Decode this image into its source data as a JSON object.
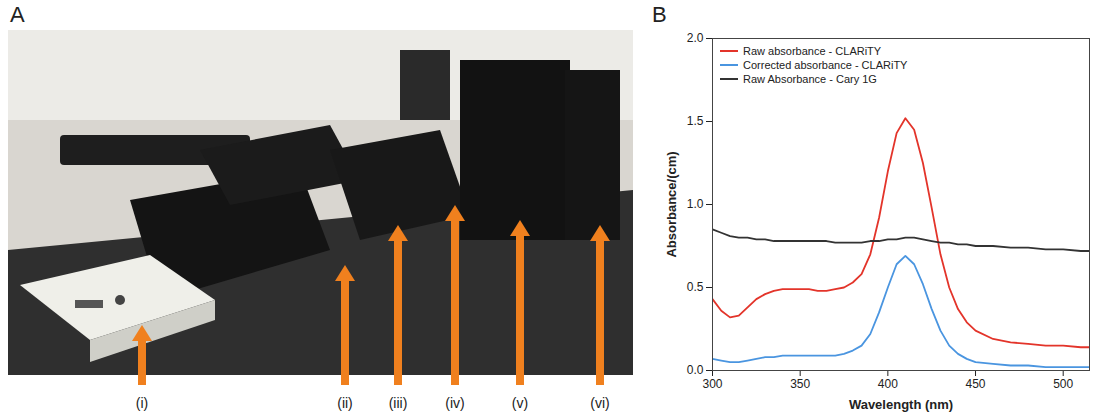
{
  "panel_a": {
    "letter": "A",
    "labels": [
      "(i)",
      "(ii)",
      "(iii)",
      "(iv)",
      "(v)",
      "(vi)"
    ]
  },
  "chart_data": {
    "panel_letter": "B",
    "type": "line",
    "xlabel": "Wavelength (nm)",
    "ylabel": "Absorbance/(cm)",
    "x": [
      300,
      305,
      310,
      315,
      320,
      325,
      330,
      335,
      340,
      345,
      350,
      355,
      360,
      365,
      370,
      375,
      380,
      385,
      390,
      395,
      400,
      405,
      410,
      415,
      420,
      425,
      430,
      435,
      440,
      445,
      450,
      460,
      470,
      480,
      490,
      500,
      510,
      515
    ],
    "series": [
      {
        "name": "Raw absorbance - CLARiTY",
        "color": "#e3342a",
        "values": [
          0.43,
          0.36,
          0.32,
          0.33,
          0.38,
          0.43,
          0.46,
          0.48,
          0.49,
          0.49,
          0.49,
          0.49,
          0.48,
          0.48,
          0.49,
          0.5,
          0.53,
          0.58,
          0.7,
          0.92,
          1.2,
          1.43,
          1.52,
          1.45,
          1.25,
          0.98,
          0.7,
          0.5,
          0.37,
          0.29,
          0.24,
          0.19,
          0.17,
          0.16,
          0.15,
          0.15,
          0.14,
          0.14
        ]
      },
      {
        "name": "Corrected absorbance - CLARiTY",
        "color": "#4a95e0",
        "values": [
          0.07,
          0.06,
          0.05,
          0.05,
          0.06,
          0.07,
          0.08,
          0.08,
          0.09,
          0.09,
          0.09,
          0.09,
          0.09,
          0.09,
          0.09,
          0.1,
          0.12,
          0.15,
          0.22,
          0.35,
          0.5,
          0.64,
          0.69,
          0.64,
          0.52,
          0.37,
          0.24,
          0.15,
          0.1,
          0.07,
          0.05,
          0.04,
          0.03,
          0.03,
          0.02,
          0.02,
          0.02,
          0.02
        ]
      },
      {
        "name": "Raw Absorbance - Cary 1G",
        "color": "#333333",
        "values": [
          0.85,
          0.83,
          0.81,
          0.8,
          0.8,
          0.79,
          0.79,
          0.78,
          0.78,
          0.78,
          0.78,
          0.78,
          0.78,
          0.78,
          0.77,
          0.77,
          0.77,
          0.77,
          0.78,
          0.78,
          0.79,
          0.79,
          0.8,
          0.8,
          0.79,
          0.78,
          0.77,
          0.77,
          0.76,
          0.76,
          0.75,
          0.75,
          0.74,
          0.74,
          0.73,
          0.73,
          0.72,
          0.72
        ]
      }
    ],
    "xlim": [
      300,
      515
    ],
    "xticks": [
      300,
      350,
      400,
      450,
      500
    ],
    "ylim": [
      0,
      2
    ],
    "yticks": [
      {
        "value": 0,
        "label": "0.0"
      },
      {
        "value": 0.5,
        "label": "0.5"
      },
      {
        "value": 1,
        "label": "1.0"
      },
      {
        "value": 1.5,
        "label": "1.5"
      },
      {
        "value": 2,
        "label": "2.0"
      }
    ],
    "legend": "top-left",
    "grid": false
  }
}
